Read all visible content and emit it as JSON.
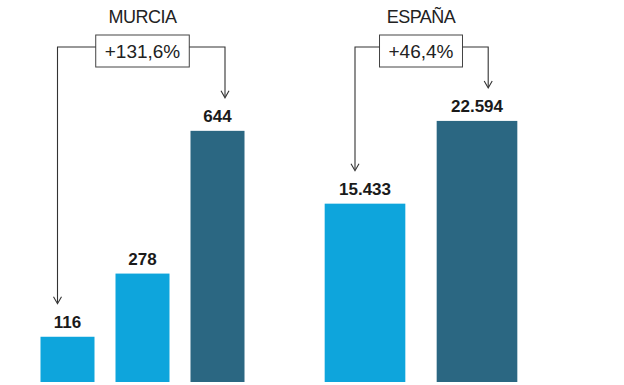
{
  "chart_data": [
    {
      "type": "bar",
      "title": "MURCIA",
      "categories": [
        null,
        null,
        null
      ],
      "values": [
        116,
        278,
        644
      ],
      "colors": [
        "#0ea5dc",
        "#0ea5dc",
        "#2b6782"
      ],
      "ylim": [
        0,
        800
      ],
      "data_labels": true,
      "tick_labels": false,
      "annotations": [
        "+131,6%"
      ]
    },
    {
      "type": "bar",
      "title": "ESPAÑA",
      "categories": [
        null,
        null
      ],
      "values": [
        15433,
        22594
      ],
      "value_labels": [
        "15.433",
        "22.594"
      ],
      "colors": [
        "#0ea5dc",
        "#2b6782"
      ],
      "ylim": [
        0,
        27000
      ],
      "data_labels": true,
      "tick_labels": false,
      "annotations": [
        "+46,4%"
      ]
    }
  ]
}
